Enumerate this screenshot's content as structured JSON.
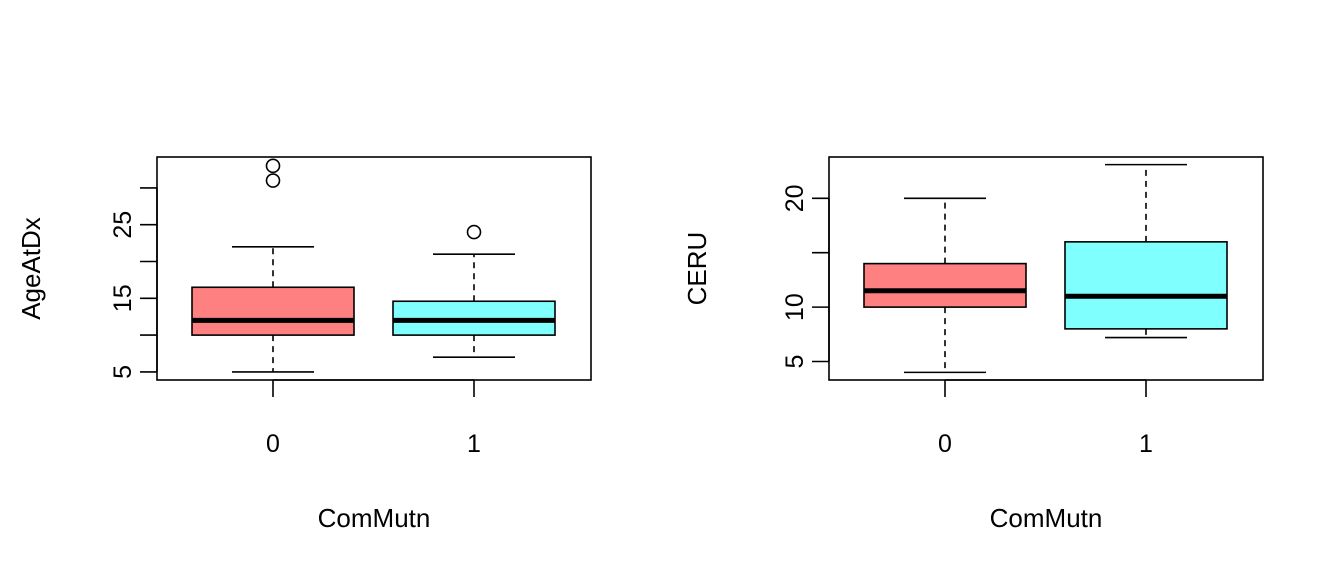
{
  "chart_data": [
    {
      "type": "boxplot",
      "xlabel": "ComMutn",
      "ylabel": "AgeAtDx",
      "ylim": [
        3.9,
        34.2
      ],
      "y_ticks": [
        5,
        10,
        15,
        20,
        25,
        30
      ],
      "y_tick_labels": [
        "5",
        "",
        "15",
        "",
        "25",
        ""
      ],
      "categories": [
        "0",
        "1"
      ],
      "boxes": [
        {
          "category": "0",
          "color": "#FF8080",
          "whisker_low": 5,
          "q1": 10,
          "median": 12,
          "q3": 16.5,
          "whisker_high": 22,
          "outliers": [
            31,
            33
          ]
        },
        {
          "category": "1",
          "color": "#80FFFF",
          "whisker_low": 7,
          "q1": 10,
          "median": 12,
          "q3": 14.6,
          "whisker_high": 21,
          "outliers": [
            24
          ]
        }
      ],
      "grid": false
    },
    {
      "type": "boxplot",
      "xlabel": "ComMutn",
      "ylabel": "CERU",
      "ylim": [
        3.3,
        23.8
      ],
      "y_ticks": [
        5,
        10,
        15,
        20
      ],
      "y_tick_labels": [
        "5",
        "10",
        "",
        "20"
      ],
      "categories": [
        "0",
        "1"
      ],
      "boxes": [
        {
          "category": "0",
          "color": "#FF8080",
          "whisker_low": 4,
          "q1": 10,
          "median": 11.5,
          "q3": 14,
          "whisker_high": 20,
          "outliers": []
        },
        {
          "category": "1",
          "color": "#80FFFF",
          "whisker_low": 7.2,
          "q1": 8,
          "median": 11,
          "q3": 16,
          "whisker_high": 23.1,
          "outliers": []
        }
      ],
      "grid": false
    }
  ]
}
